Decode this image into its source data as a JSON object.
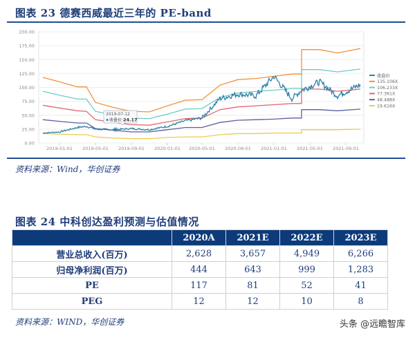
{
  "figure23": {
    "title": "图表 23   德赛西威最近三年的 PE-band",
    "source": "资料来源：Wind，华创证券"
  },
  "figure24": {
    "title": "图表 24   中科创达盈利预测与估值情况",
    "source": "资料来源：WIND，华创证券",
    "table": {
      "headers": [
        "",
        "2020A",
        "2021E",
        "2022E",
        "2023E"
      ],
      "rows": [
        {
          "label": "营业总收入(百万)",
          "values": [
            "2,628",
            "3,657",
            "4,949",
            "6,266"
          ]
        },
        {
          "label": "归母净利润(百万)",
          "values": [
            "444",
            "643",
            "999",
            "1,283"
          ]
        },
        {
          "label": "PE",
          "values": [
            "117",
            "81",
            "52",
            "41"
          ]
        },
        {
          "label": "PEG",
          "values": [
            "12",
            "12",
            "10",
            "8"
          ]
        }
      ]
    }
  },
  "watermark": "头条 @远瞻智库",
  "chart_data": {
    "type": "line",
    "title": "德赛西威最近三年的 PE-band",
    "xlabel": "",
    "ylabel": "",
    "ylim": [
      0,
      200
    ],
    "yticks": [
      "0.00",
      "25.00",
      "50.00",
      "75.00",
      "100.00",
      "125.00",
      "150.00",
      "175.00",
      "200.00"
    ],
    "xticks": [
      "2019-01-01",
      "2019-05-01",
      "2019-09-01",
      "2020-01-01",
      "2020-05-01",
      "2020-09-01",
      "2021-01-01",
      "2021-05-01",
      "2021-09-01"
    ],
    "grid": true,
    "legend_position": "right",
    "tooltip": {
      "date": "2019-07-12",
      "label": "收盘价:",
      "value": "24.17"
    },
    "x": [
      "2018-10",
      "2019-01",
      "2019-03",
      "2019-04",
      "2019-05",
      "2019-07",
      "2019-09",
      "2019-11",
      "2020-01",
      "2020-03",
      "2020-05",
      "2020-07",
      "2020-09",
      "2020-11",
      "2021-01",
      "2021-03",
      "2021-04",
      "2021-06",
      "2021-08",
      "2021-10"
    ],
    "series": [
      {
        "name": "收盘价",
        "color": "#2e7fa8",
        "values": [
          18,
          20,
          28,
          30,
          25,
          24,
          26,
          24,
          30,
          40,
          45,
          80,
          88,
          85,
          120,
          80,
          95,
          110,
          85,
          105
        ]
      },
      {
        "name": "135.106X",
        "color": "#f0923a",
        "values": [
          118,
          110,
          101,
          101,
          73,
          64,
          57,
          56,
          67,
          77,
          78,
          104,
          114,
          116,
          120,
          124,
          168,
          168,
          162,
          170
        ]
      },
      {
        "name": "106.233X",
        "color": "#6dcbc4",
        "values": [
          93,
          86,
          79,
          79,
          57,
          50,
          45,
          44,
          52,
          61,
          62,
          82,
          90,
          93,
          95,
          98,
          132,
          132,
          128,
          133
        ]
      },
      {
        "name": "77.361X",
        "color": "#e0676b",
        "values": [
          68,
          63,
          58,
          57,
          42,
          37,
          33,
          32,
          38,
          44,
          45,
          60,
          65,
          67,
          69,
          71,
          97,
          97,
          93,
          97
        ]
      },
      {
        "name": "48.488X",
        "color": "#5d5ca0",
        "values": [
          42,
          39,
          36,
          36,
          26,
          23,
          20,
          20,
          24,
          28,
          28,
          37,
          41,
          42,
          43,
          45,
          60,
          60,
          58,
          61
        ]
      },
      {
        "name": "19.616X",
        "color": "#efc94c",
        "values": [
          17,
          16,
          15,
          15,
          11,
          9,
          8,
          8,
          10,
          11,
          11,
          15,
          17,
          17,
          18,
          18,
          24,
          24,
          24,
          25
        ]
      }
    ]
  }
}
